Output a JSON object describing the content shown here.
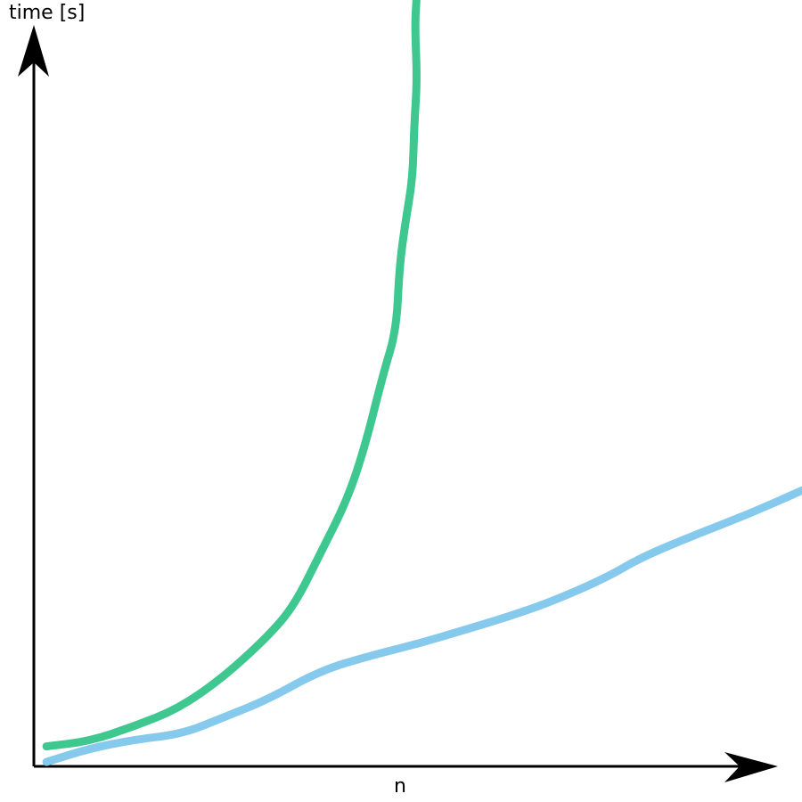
{
  "chart_data": {
    "type": "line",
    "title": "",
    "xlabel": "n",
    "ylabel": "time [s]",
    "xlim": [
      0,
      100
    ],
    "ylim": [
      0,
      100
    ],
    "grid": false,
    "ticks": false,
    "series": [
      {
        "color": "#3ec78f",
        "x": [
          1.7,
          7.5,
          13.5,
          19.5,
          25.5,
          31.5,
          35.1,
          38.7,
          42.3,
          44.7,
          47.1,
          48.9,
          49.3,
          50.1,
          51.1,
          51.3,
          51.7,
          51.4,
          51.6
        ],
        "y": [
          2.7,
          3.4,
          5.4,
          7.8,
          12.0,
          17.5,
          21.7,
          28.9,
          36.1,
          43.4,
          53.0,
          59.0,
          67.5,
          73.5,
          79.5,
          86.7,
          92.8,
          100,
          103.6
        ]
      },
      {
        "color": "#85c9ec",
        "x": [
          1.7,
          7.5,
          13.5,
          20.1,
          25.5,
          31.5,
          38.7,
          45.9,
          51.9,
          57.9,
          63.9,
          69.9,
          77.2,
          82.0,
          89.2,
          96.4,
          103.6
        ],
        "y": [
          0.6,
          2.4,
          3.6,
          4.4,
          6.6,
          9.0,
          13.0,
          15.1,
          16.6,
          18.4,
          20.2,
          22.3,
          25.5,
          28.3,
          31.3,
          34.1,
          37.3
        ]
      }
    ]
  }
}
